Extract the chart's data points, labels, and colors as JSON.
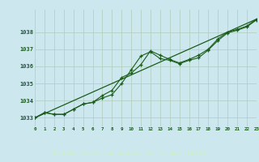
{
  "x": [
    0,
    1,
    2,
    3,
    4,
    5,
    6,
    7,
    8,
    9,
    10,
    11,
    12,
    13,
    14,
    15,
    16,
    17,
    18,
    19,
    20,
    21,
    22,
    23
  ],
  "line1": [
    1033.0,
    1033.3,
    1033.2,
    1033.2,
    1033.5,
    1033.8,
    1033.9,
    1034.3,
    1034.6,
    1035.35,
    1035.6,
    1036.1,
    1036.9,
    1036.65,
    1036.4,
    1036.2,
    1036.4,
    1036.65,
    1037.0,
    1037.6,
    1038.0,
    1038.15,
    1038.35,
    1038.75
  ],
  "line2": [
    1033.0,
    1033.3,
    1033.2,
    1033.2,
    1033.5,
    1033.8,
    1033.9,
    1034.15,
    1034.35,
    1035.0,
    1035.8,
    1036.6,
    1036.85,
    1036.45,
    1036.35,
    1036.15,
    1036.35,
    1036.5,
    1036.95,
    1037.5,
    1037.95,
    1038.1,
    1038.3,
    1038.7
  ],
  "line3_x": [
    0,
    23
  ],
  "line3_y": [
    1033.0,
    1038.75
  ],
  "bg_color": "#cce8ee",
  "grid_color": "#b0ccbb",
  "line_color": "#1a5c1a",
  "xlabel_bar_color": "#1a5c1a",
  "xlabel_text_color": "#cceecc",
  "ylabel_values": [
    1033,
    1034,
    1035,
    1036,
    1037,
    1038
  ],
  "xlabel_values": [
    0,
    1,
    2,
    3,
    4,
    5,
    6,
    7,
    8,
    9,
    10,
    11,
    12,
    13,
    14,
    15,
    16,
    17,
    18,
    19,
    20,
    21,
    22,
    23
  ],
  "xlabel": "Graphe pression niveau de la mer (hPa)",
  "ylim": [
    1032.5,
    1039.3
  ],
  "xlim": [
    0,
    23
  ]
}
